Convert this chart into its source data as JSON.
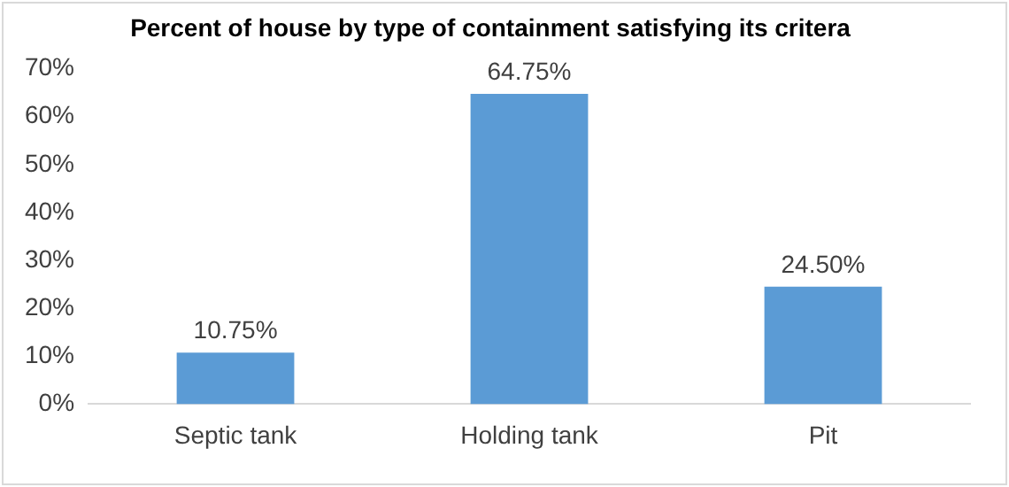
{
  "chart_data": {
    "type": "bar",
    "title": "Percent of house by type of containment satisfying its critera",
    "categories": [
      "Septic tank",
      "Holding tank",
      "Pit"
    ],
    "values": [
      10.75,
      64.75,
      24.5
    ],
    "value_labels": [
      "10.75%",
      "64.75%",
      "24.50%"
    ],
    "color": "#5b9bd5",
    "ylim": [
      0,
      70
    ],
    "yticks": [
      {
        "value": 0,
        "label": "0%"
      },
      {
        "value": 10,
        "label": "10%"
      },
      {
        "value": 20,
        "label": "20%"
      },
      {
        "value": 30,
        "label": "30%"
      },
      {
        "value": 40,
        "label": "40%"
      },
      {
        "value": 50,
        "label": "50%"
      },
      {
        "value": 60,
        "label": "60%"
      },
      {
        "value": 70,
        "label": "70%"
      }
    ],
    "grid": false,
    "legend": false
  }
}
